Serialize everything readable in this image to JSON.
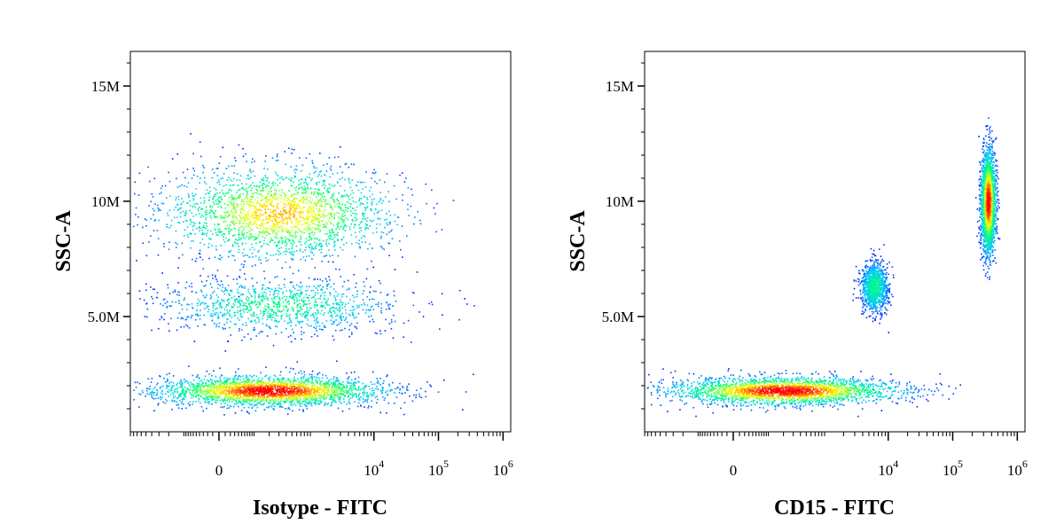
{
  "chart_data": [
    {
      "type": "scatter",
      "xlabel": "Isotype - FITC",
      "ylabel": "SSC-A",
      "x_scale": "biexponential",
      "x_tick_labels": [
        {
          "base": "0",
          "exp": "",
          "value": 0
        },
        {
          "base": "10",
          "exp": "4",
          "value": 10000
        },
        {
          "base": "10",
          "exp": "5",
          "value": 100000
        },
        {
          "base": "10",
          "exp": "6",
          "value": 1000000
        }
      ],
      "y_tick_labels": [
        {
          "label": "5.0M",
          "value": 5000000
        },
        {
          "label": "10M",
          "value": 10000000
        },
        {
          "label": "15M",
          "value": 15000000
        }
      ],
      "ylim": [
        0,
        16500000
      ],
      "grid": false,
      "colormap": [
        "#0000ff",
        "#00c8ff",
        "#00ff80",
        "#ffff00",
        "#ff0000"
      ],
      "populations": [
        {
          "x_center": 200,
          "y_center": 1800000,
          "x_spread": 1500,
          "y_spread": 550000,
          "density": "high"
        },
        {
          "x_center": 300,
          "y_center": 9500000,
          "x_spread": 1800,
          "y_spread": 1700000,
          "density": "medium"
        },
        {
          "x_center": 300,
          "y_center": 5500000,
          "x_spread": 1700,
          "y_spread": 1000000,
          "density": "low"
        }
      ]
    },
    {
      "type": "scatter",
      "xlabel": "CD15 - FITC",
      "ylabel": "SSC-A",
      "x_scale": "biexponential",
      "x_tick_labels": [
        {
          "base": "0",
          "exp": "",
          "value": 0
        },
        {
          "base": "10",
          "exp": "4",
          "value": 10000
        },
        {
          "base": "10",
          "exp": "5",
          "value": 100000
        },
        {
          "base": "10",
          "exp": "6",
          "value": 1000000
        }
      ],
      "y_tick_labels": [
        {
          "label": "5.0M",
          "value": 5000000
        },
        {
          "label": "10M",
          "value": 10000000
        },
        {
          "label": "15M",
          "value": 15000000
        }
      ],
      "ylim": [
        0,
        16500000
      ],
      "grid": false,
      "colormap": [
        "#0000ff",
        "#00c8ff",
        "#00ff80",
        "#ffff00",
        "#ff0000"
      ],
      "populations": [
        {
          "x_center": 200,
          "y_center": 1800000,
          "x_spread": 1500,
          "y_spread": 500000,
          "density": "high"
        },
        {
          "x_center": 6000,
          "y_center": 6300000,
          "x_spread": 2500,
          "y_spread": 900000,
          "density": "low"
        },
        {
          "x_center": 350000,
          "y_center": 10000000,
          "x_spread": 80000,
          "y_spread": 1800000,
          "density": "high"
        }
      ]
    }
  ]
}
